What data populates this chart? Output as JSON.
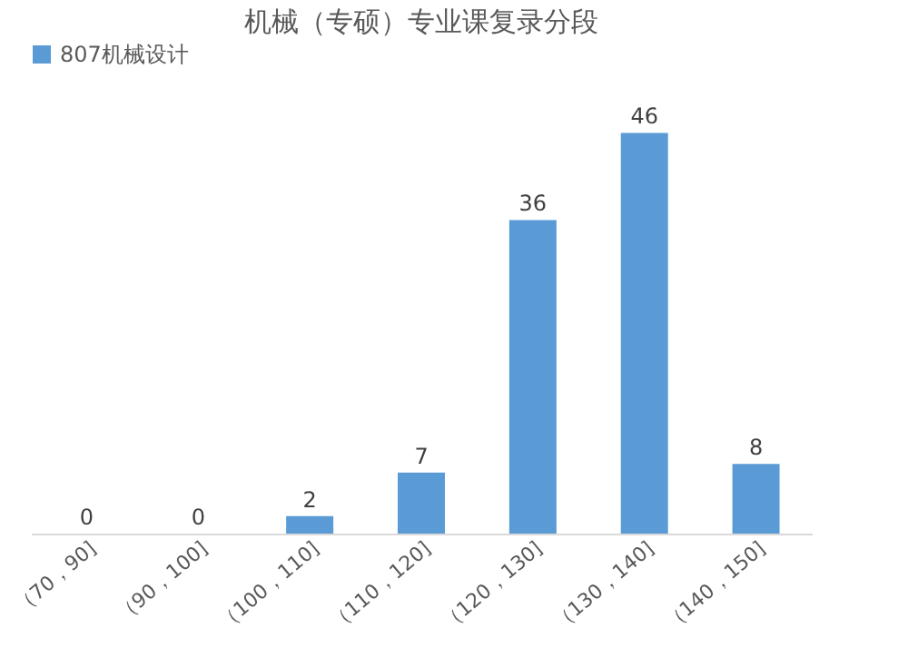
{
  "chart_data": {
    "type": "bar",
    "title": "机械（专硕）专业课复录分段",
    "categories": [
      "（70，90]",
      "（90，100]",
      "（100，110]",
      "（110，120]",
      "（120，130]",
      "（130，140]",
      "（140，150]"
    ],
    "series": [
      {
        "name": "807机械设计",
        "color": "#5b9bd5",
        "values": [
          0,
          0,
          2,
          7,
          36,
          46,
          8
        ]
      }
    ],
    "data_labels": true,
    "legend": "top",
    "grid": false
  }
}
